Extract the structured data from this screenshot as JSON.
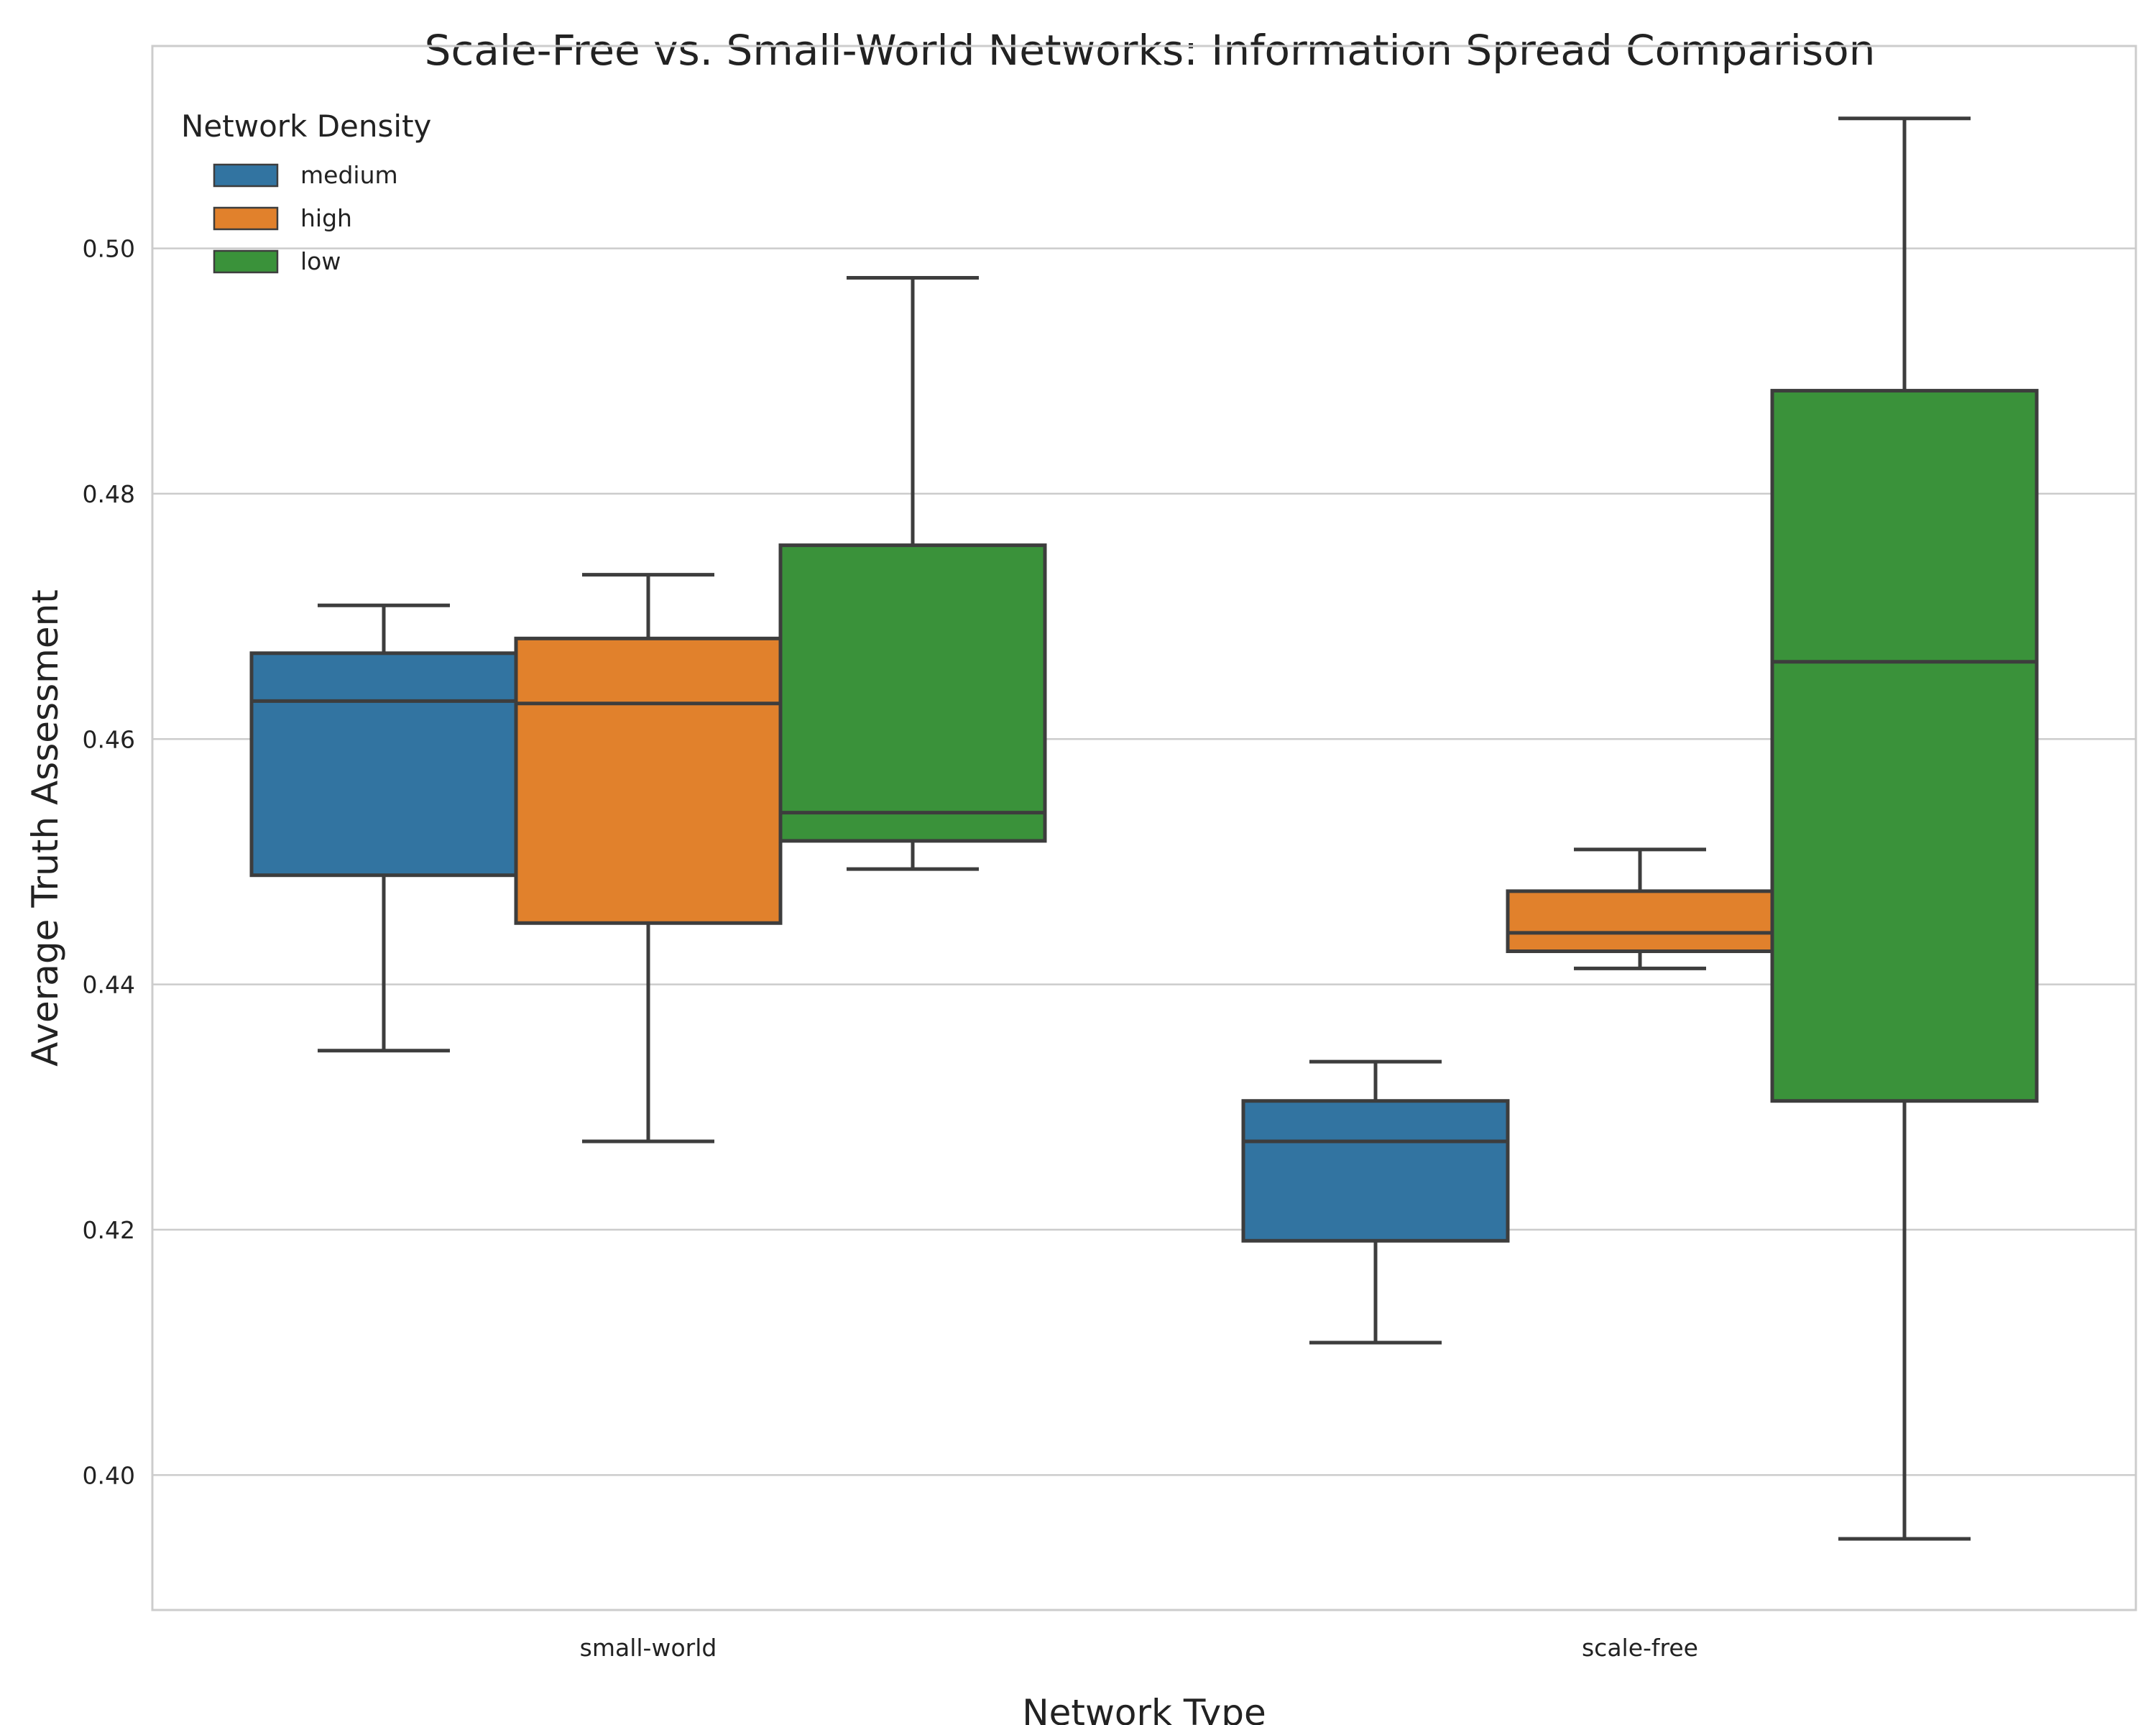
{
  "chart_data": {
    "type": "box",
    "title": "Scale-Free vs. Small-World Networks: Information Spread Comparison",
    "xlabel": "Network Type",
    "ylabel": "Average Truth Assessment",
    "categories": [
      "small-world",
      "scale-free"
    ],
    "ylim": [
      0.389,
      0.5165
    ],
    "yticks": [
      0.4,
      0.42,
      0.44,
      0.46,
      0.48,
      0.5
    ],
    "ytick_labels": [
      "0.40",
      "0.42",
      "0.44",
      "0.46",
      "0.48",
      "0.50"
    ],
    "grid": "horizontal",
    "legend": {
      "title": "Network Density",
      "placement": "top-left"
    },
    "series": [
      {
        "name": "medium",
        "color": "#3274a1",
        "boxes": [
          {
            "whislo": 0.4346,
            "q1": 0.4489,
            "med": 0.4631,
            "q3": 0.467,
            "whishi": 0.4709
          },
          {
            "whislo": 0.4108,
            "q1": 0.4191,
            "med": 0.4272,
            "q3": 0.4305,
            "whishi": 0.4337
          }
        ]
      },
      {
        "name": "high",
        "color": "#e1812c",
        "boxes": [
          {
            "whislo": 0.4272,
            "q1": 0.445,
            "med": 0.4629,
            "q3": 0.4682,
            "whishi": 0.4734
          },
          {
            "whislo": 0.4413,
            "q1": 0.4427,
            "med": 0.4442,
            "q3": 0.4476,
            "whishi": 0.451
          }
        ]
      },
      {
        "name": "low",
        "color": "#3a923a",
        "boxes": [
          {
            "whislo": 0.4494,
            "q1": 0.4517,
            "med": 0.454,
            "q3": 0.4758,
            "whishi": 0.4976
          },
          {
            "whislo": 0.3948,
            "q1": 0.4305,
            "med": 0.4663,
            "q3": 0.4884,
            "whishi": 0.5106
          }
        ]
      }
    ]
  }
}
